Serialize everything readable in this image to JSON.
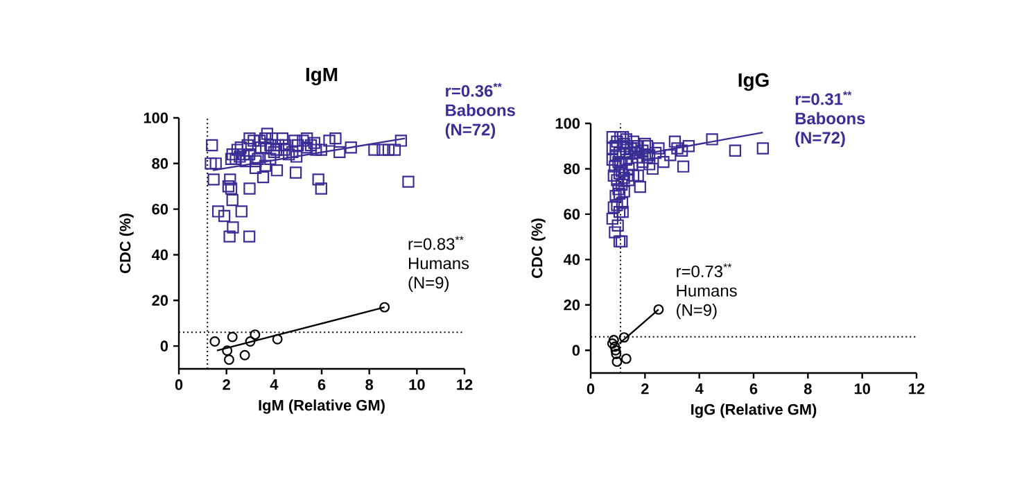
{
  "chart_data": [
    {
      "type": "scatter",
      "title": "IgM",
      "xlabel": "IgM (Relative GM)",
      "ylabel": "CDC (%)",
      "xlim": [
        0,
        12
      ],
      "xticks": [
        0,
        2,
        4,
        6,
        8,
        10,
        12
      ],
      "ylim": [
        -10,
        100
      ],
      "yticks": [
        0,
        20,
        40,
        60,
        80,
        100
      ],
      "series": [
        {
          "marker": "square",
          "color": "#3a2d96",
          "x": [
            1.39,
            1.34,
            1.55,
            1.46,
            1.65,
            1.91,
            2.08,
            2.2,
            2.15,
            2.13,
            2.27,
            2.25,
            2.63,
            2.97,
            2.96,
            2.2,
            2.25,
            2.46,
            2.6,
            2.72,
            2.89,
            2.97,
            2.96,
            3.14,
            3.22,
            3.32,
            3.45,
            3.63,
            3.71,
            3.66,
            3.63,
            3.54,
            3.84,
            3.92,
            4.12,
            4.09,
            4.35,
            4.48,
            4.62,
            4.86,
            4.91,
            4.94,
            5.0,
            5.21,
            5.38,
            5.55,
            5.76,
            5.86,
            5.98,
            5.98,
            6.32,
            6.58,
            6.75,
            7.23,
            8.21,
            8.56,
            8.81,
            9.07,
            9.33,
            9.64,
            4.18,
            4.43,
            2.56,
            2.8,
            3.23,
            3.4,
            4.77,
            4.0,
            5.38,
            5.69,
            2.39,
            3.84
          ],
          "values": [
            88,
            80,
            80,
            73,
            59,
            57,
            70,
            69,
            73,
            48,
            52,
            64,
            59,
            69,
            48,
            82,
            84,
            86,
            87,
            84,
            88,
            91,
            84,
            90,
            78,
            82,
            87,
            91,
            93,
            87,
            79,
            74,
            82,
            91,
            77,
            86,
            91,
            88,
            84,
            90,
            76,
            83,
            88,
            90,
            91,
            88,
            86,
            73,
            69,
            86,
            90,
            91,
            85,
            87,
            86,
            86,
            86,
            86,
            90,
            72,
            88,
            86,
            83,
            81,
            81,
            90,
            85,
            85,
            87,
            89,
            82,
            88
          ]
        },
        {
          "marker": "circle",
          "color": "#000000",
          "x": [
            1.51,
            2.03,
            2.11,
            2.25,
            2.77,
            3.0,
            3.2,
            4.14,
            8.64
          ],
          "values": [
            2,
            -2,
            -6,
            4,
            -4,
            2,
            5,
            3,
            17
          ]
        },
        {
          "type": "line",
          "marker": "none",
          "color": "#3a2d96",
          "x": [
            1.43,
            9.5
          ],
          "values": [
            77,
            91
          ]
        },
        {
          "type": "line",
          "marker": "none",
          "color": "#000000",
          "x": [
            1.6,
            8.64
          ],
          "values": [
            -2,
            17
          ]
        }
      ],
      "ref_lines": [
        {
          "axis": "x",
          "value": 1.2,
          "line_style": "dotted"
        },
        {
          "axis": "y",
          "value": 6,
          "line_style": "dotted"
        }
      ],
      "annotations": [
        "r=0.36$^{**}$",
        "Baboons",
        "(N=72)",
        "r=0.83$^{**}$",
        "Humans",
        "(N=9)"
      ]
    },
    {
      "type": "scatter",
      "title": "IgG",
      "xlabel": "IgG (Relative GM)",
      "ylabel": "CDC (%)",
      "xlim": [
        0,
        12
      ],
      "xticks": [
        0,
        2,
        4,
        6,
        8,
        10,
        12
      ],
      "ylim": [
        -10,
        100
      ],
      "yticks": [
        0,
        20,
        40,
        60,
        80,
        100
      ],
      "series": [
        {
          "marker": "square",
          "color": "#3a2d96",
          "x": [
            0.8,
            0.89,
            1.06,
            1.14,
            1.0,
            1.06,
            1.18,
            0.97,
            1.06,
            1.23,
            0.97,
            1.14,
            0.89,
            0.8,
            0.8,
            0.97,
            1.06,
            1.23,
            1.31,
            1.4,
            1.48,
            1.57,
            1.65,
            1.74,
            1.82,
            1.91,
            2.0,
            2.08,
            2.16,
            2.28,
            2.5,
            2.68,
            3.1,
            3.36,
            3.41,
            3.61,
            4.47,
            5.32,
            6.34,
            0.92,
            0.85,
            1.02,
            1.09,
            1.19,
            1.31,
            0.92,
            1.23,
            1.4,
            1.53,
            1.14,
            1.02,
            1.57,
            1.74,
            2.16,
            2.39,
            0.8,
            1.43,
            1.31,
            1.74,
            1.91,
            1.06,
            1.16,
            0.92,
            2.93,
            2.08,
            3.19,
            0.85,
            1.09,
            1.6
          ],
          "values": [
            58,
            52,
            48,
            48,
            55,
            61,
            61,
            64,
            69,
            70,
            75,
            79,
            81,
            89,
            94,
            92,
            87,
            91,
            84,
            80,
            89,
            92,
            87,
            77,
            72,
            83,
            91,
            90,
            86,
            80,
            89,
            83,
            92,
            88,
            81,
            90,
            93,
            88,
            89,
            86,
            77,
            83,
            94,
            94,
            93,
            90,
            76,
            75,
            82,
            73,
            71,
            77,
            85,
            82,
            87,
            84,
            87,
            90,
            90,
            88,
            78,
            65,
            68,
            86,
            85,
            89,
            63,
            82,
            89
          ]
        },
        {
          "marker": "circle",
          "color": "#000000",
          "x": [
            0.8,
            0.85,
            0.89,
            0.94,
            0.97,
            1.23,
            1.31,
            2.5,
            0.92
          ],
          "values": [
            3,
            4.5,
            1.6,
            -1.6,
            -5,
            5.7,
            -3.7,
            18,
            0
          ]
        },
        {
          "type": "line",
          "marker": "none",
          "color": "#3a2d96",
          "x": [
            0.8,
            6.34
          ],
          "values": [
            84,
            96
          ]
        },
        {
          "type": "line",
          "marker": "none",
          "color": "#000000",
          "x": [
            1.06,
            2.5
          ],
          "values": [
            3,
            18
          ]
        }
      ],
      "ref_lines": [
        {
          "axis": "x",
          "value": 1.1,
          "line_style": "dotted"
        },
        {
          "axis": "y",
          "value": 6,
          "line_style": "dotted"
        }
      ],
      "annotations": [
        "r=0.31$^{**}$",
        "Baboons",
        "(N=72)",
        "r=0.73$^{**}$",
        "Humans",
        "(N=9)"
      ]
    }
  ]
}
